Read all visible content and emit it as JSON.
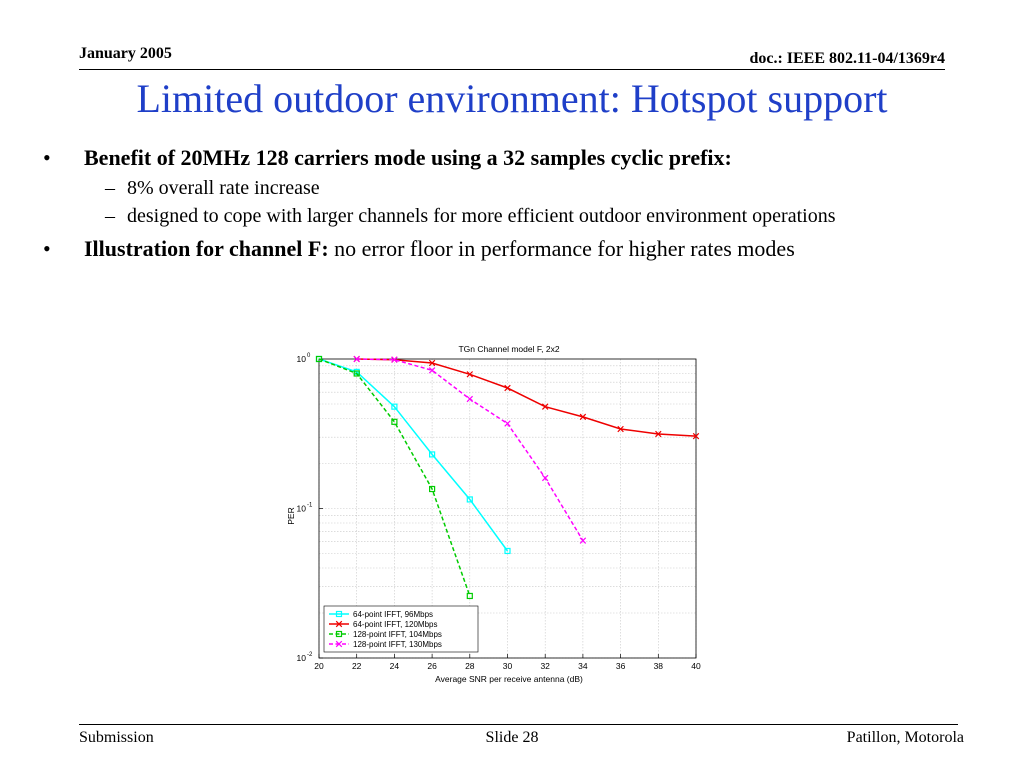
{
  "header": {
    "date": "January 2005",
    "doc": "doc.: IEEE 802.11-04/1369r4"
  },
  "title": "Limited outdoor environment: Hotspot support",
  "bullets": [
    {
      "bold": "Benefit of 20MHz 128 carriers mode using a 32 samples cyclic prefix:",
      "text": "",
      "subs": [
        "8% overall rate increase",
        "designed to cope with larger channels for more efficient outdoor environment operations"
      ]
    },
    {
      "bold": "Illustration for channel F:",
      "text": " no error floor in performance for higher rates modes",
      "subs": []
    }
  ],
  "footer": {
    "left": "Submission",
    "center": "Slide 28",
    "right": "Patillon, Motorola"
  },
  "chart_data": {
    "type": "line",
    "title": "TGn Channel model F, 2x2",
    "xlabel": "Average SNR per receive antenna (dB)",
    "ylabel": "PER",
    "xlim": [
      20,
      40
    ],
    "ylim": [
      0.01,
      1
    ],
    "yscale": "log",
    "xticks": [
      20,
      22,
      24,
      26,
      28,
      30,
      32,
      34,
      36,
      38,
      40
    ],
    "yticks": [
      {
        "value": 1,
        "base": "10",
        "exp": "0"
      },
      {
        "value": 0.1,
        "base": "10",
        "exp": "-1"
      },
      {
        "value": 0.01,
        "base": "10",
        "exp": "-2"
      }
    ],
    "grid": true,
    "legend_position": "bottom-left",
    "series": [
      {
        "name": "64-point IFFT, 96Mbps",
        "color": "#00ffff",
        "dash": "solid",
        "marker": "square",
        "x": [
          20,
          22,
          24,
          26,
          28,
          30
        ],
        "y": [
          1.0,
          0.82,
          0.48,
          0.23,
          0.115,
          0.052
        ]
      },
      {
        "name": "64-point IFFT, 120Mbps",
        "color": "#ee0000",
        "dash": "solid",
        "marker": "x",
        "x": [
          22,
          24,
          26,
          28,
          30,
          32,
          34,
          36,
          38,
          40
        ],
        "y": [
          1.0,
          0.99,
          0.94,
          0.79,
          0.64,
          0.48,
          0.41,
          0.34,
          0.315,
          0.305
        ]
      },
      {
        "name": "128-point IFFT, 104Mbps",
        "color": "#00cc00",
        "dash": "dashed",
        "marker": "square",
        "x": [
          20,
          22,
          24,
          26,
          28
        ],
        "y": [
          1.0,
          0.8,
          0.38,
          0.135,
          0.026
        ]
      },
      {
        "name": "128-point IFFT, 130Mbps",
        "color": "#ff00ff",
        "dash": "dashed",
        "marker": "x",
        "x": [
          22,
          24,
          26,
          28,
          30,
          32,
          34
        ],
        "y": [
          1.0,
          0.99,
          0.84,
          0.54,
          0.37,
          0.16,
          0.061
        ]
      }
    ]
  }
}
